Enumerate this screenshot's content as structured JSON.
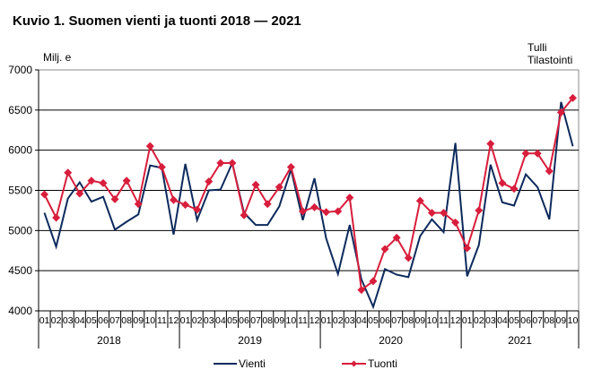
{
  "chart_data": {
    "type": "line",
    "title": "Kuvio 1. Suomen vienti ja tuonti 2018 — 2021",
    "ylabel": "Milj. e",
    "source": [
      "Tulli",
      "Tilastointi"
    ],
    "xlabel": "",
    "ylim": [
      4000,
      7000
    ],
    "yticks": [
      4000,
      4500,
      5000,
      5500,
      6000,
      6500,
      7000
    ],
    "grid": true,
    "legend_position": "bottom",
    "years": [
      {
        "label": "2018",
        "months": 12
      },
      {
        "label": "2019",
        "months": 12
      },
      {
        "label": "2020",
        "months": 12
      },
      {
        "label": "2021",
        "months": 10
      }
    ],
    "month_labels": [
      "01",
      "02",
      "03",
      "04",
      "05",
      "06",
      "07",
      "08",
      "09",
      "10",
      "11",
      "12",
      "01",
      "02",
      "03",
      "04",
      "05",
      "06",
      "07",
      "08",
      "09",
      "10",
      "11",
      "12",
      "01",
      "02",
      "03",
      "04",
      "05",
      "06",
      "07",
      "08",
      "09",
      "10",
      "11",
      "12",
      "01",
      "02",
      "03",
      "04",
      "05",
      "06",
      "07",
      "08",
      "09",
      "10"
    ],
    "series": [
      {
        "name": "Vienti",
        "color": "#0d2a5c",
        "marker": "none",
        "values": [
          5220,
          4800,
          5400,
          5600,
          5360,
          5420,
          5010,
          5110,
          5200,
          5810,
          5780,
          4950,
          5830,
          5130,
          5500,
          5510,
          5840,
          5220,
          5070,
          5070,
          5300,
          5760,
          5130,
          5650,
          4900,
          4460,
          5070,
          4390,
          4050,
          4520,
          4450,
          4420,
          4930,
          5140,
          4980,
          6090,
          4430,
          4820,
          5820,
          5350,
          5310,
          5700,
          5540,
          5140,
          6600,
          6050
        ]
      },
      {
        "name": "Tuonti",
        "color": "#d81e3c",
        "marker": "diamond",
        "values": [
          5450,
          5160,
          5720,
          5460,
          5620,
          5590,
          5390,
          5620,
          5330,
          6050,
          5790,
          5380,
          5320,
          5260,
          5610,
          5840,
          5840,
          5190,
          5570,
          5330,
          5540,
          5790,
          5240,
          5290,
          5230,
          5240,
          5410,
          4260,
          4370,
          4770,
          4910,
          4660,
          5370,
          5220,
          5220,
          5100,
          4780,
          5250,
          6080,
          5590,
          5520,
          5960,
          5960,
          5740,
          6470,
          6650
        ]
      }
    ]
  }
}
